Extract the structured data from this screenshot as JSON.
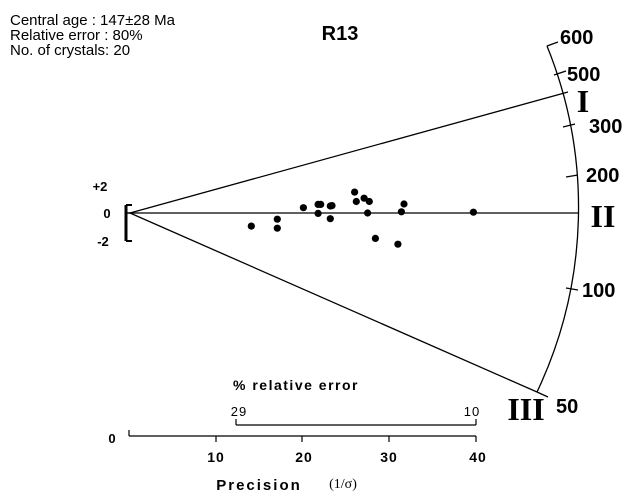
{
  "stats": {
    "central_age": "Central age   : 147±28 Ma",
    "relative_error": "Relative error : 80%",
    "crystals": "No. of crystals: 20"
  },
  "sample_label": "R13",
  "colors": {
    "ink": "#000000",
    "background": "#ffffff"
  },
  "chart_data": {
    "type": "scatter",
    "subtype": "radial-plot",
    "title": "R13",
    "central_age_ma": 147,
    "z_scale": {
      "tick_labels": [
        "+2",
        "0",
        "-2"
      ],
      "values": [
        2,
        0,
        -2
      ]
    },
    "x_axis": {
      "label": "Precision",
      "unit": "(1/σ)",
      "range": [
        0,
        40
      ],
      "ticks": [
        0,
        10,
        20,
        30,
        40
      ],
      "tick_labels": [
        "10",
        "20",
        "30",
        "40"
      ],
      "origin_label": "0"
    },
    "error_axis": {
      "label": "% relative error",
      "ticks": [
        {
          "label": "29",
          "precision": 14
        },
        {
          "label": "10",
          "precision": 40
        }
      ]
    },
    "age_scale": {
      "unit": "Ma",
      "labels": [
        {
          "label": "600",
          "age": 600
        },
        {
          "label": "500",
          "age": 500
        },
        {
          "label": "300",
          "age": 300
        },
        {
          "label": "200",
          "age": 200
        },
        {
          "label": "100",
          "age": 100
        },
        {
          "label": "50",
          "age": 50
        }
      ]
    },
    "reference_lines": [
      {
        "label": "I",
        "age_ma": 390
      },
      {
        "label": "II",
        "age_ma": 147
      },
      {
        "label": "III",
        "age_ma": 50
      }
    ],
    "points": [
      {
        "x": 26.0,
        "y": 5.1
      },
      {
        "x": 27.1,
        "y": 3.6
      },
      {
        "x": 26.2,
        "y": 2.8
      },
      {
        "x": 27.7,
        "y": 2.8
      },
      {
        "x": 31.7,
        "y": 2.2
      },
      {
        "x": 21.8,
        "y": 2.1
      },
      {
        "x": 22.1,
        "y": 2.1
      },
      {
        "x": 23.4,
        "y": 1.8
      },
      {
        "x": 23.2,
        "y": 1.7
      },
      {
        "x": 20.1,
        "y": 1.3
      },
      {
        "x": 31.4,
        "y": 0.3
      },
      {
        "x": 39.7,
        "y": 0.2
      },
      {
        "x": 27.5,
        "y": 0.0
      },
      {
        "x": 21.8,
        "y": -0.1
      },
      {
        "x": 23.2,
        "y": -1.4
      },
      {
        "x": 17.1,
        "y": -1.5
      },
      {
        "x": 14.1,
        "y": -3.2
      },
      {
        "x": 17.1,
        "y": -3.7
      },
      {
        "x": 28.4,
        "y": -6.2
      },
      {
        "x": 31.0,
        "y": -7.6
      }
    ],
    "grid": false
  }
}
